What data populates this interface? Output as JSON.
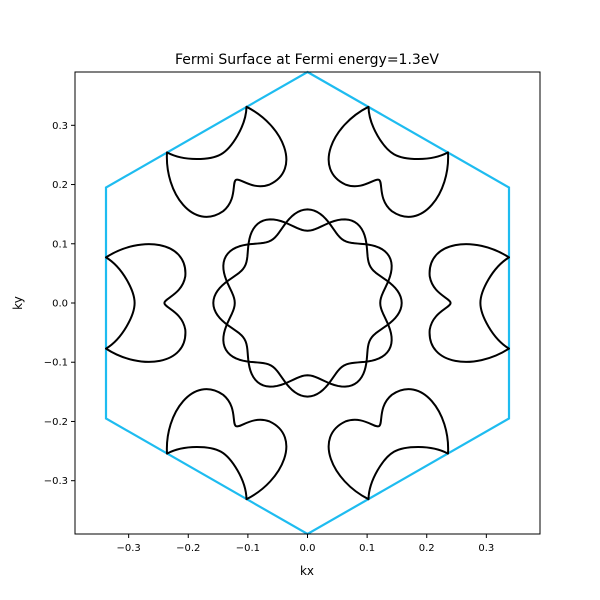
{
  "chart_data": {
    "type": "line",
    "title": "Fermi Surface at Fermi energy=1.3eV",
    "xlabel": "kx",
    "ylabel": "ky",
    "xlim": [
      -0.39,
      0.39
    ],
    "ylim": [
      -0.39,
      0.39
    ],
    "x_ticks": [
      -0.3,
      -0.2,
      -0.1,
      0.0,
      0.1,
      0.2,
      0.3
    ],
    "y_ticks": [
      -0.3,
      -0.2,
      -0.1,
      0.0,
      0.1,
      0.2,
      0.3
    ],
    "x_tick_labels": [
      "−0.3",
      "−0.2",
      "−0.1",
      "0.0",
      "0.1",
      "0.2",
      "0.3"
    ],
    "y_tick_labels": [
      "−0.3",
      "−0.2",
      "−0.1",
      "0.0",
      "0.1",
      "0.2",
      "0.3"
    ],
    "grid": false,
    "brillouin_zone": {
      "color": "#1ebcf0",
      "vertices": [
        [
          0.0,
          0.39
        ],
        [
          0.338,
          0.195
        ],
        [
          0.338,
          -0.195
        ],
        [
          0.0,
          -0.39
        ],
        [
          -0.338,
          -0.195
        ],
        [
          -0.338,
          0.195
        ]
      ]
    },
    "fermi_surface": {
      "color": "#000000",
      "central_pocket": {
        "description_values": "two overlapping sixfold-symmetric contours",
        "mean_radius": 0.14,
        "modulation": 0.018,
        "phases_deg": [
          0,
          30
        ]
      },
      "outer_pockets": {
        "count": 6,
        "centers_angle_deg": [
          0,
          60,
          120,
          180,
          240,
          300
        ],
        "tip_points_first": [
          [
            0.338,
            0.077
          ],
          [
            0.338,
            -0.077
          ]
        ],
        "inner_apex_first": [
          0.24,
          0.0
        ],
        "outer_bulge_first": [
          0.29,
          0.0
        ]
      }
    }
  }
}
